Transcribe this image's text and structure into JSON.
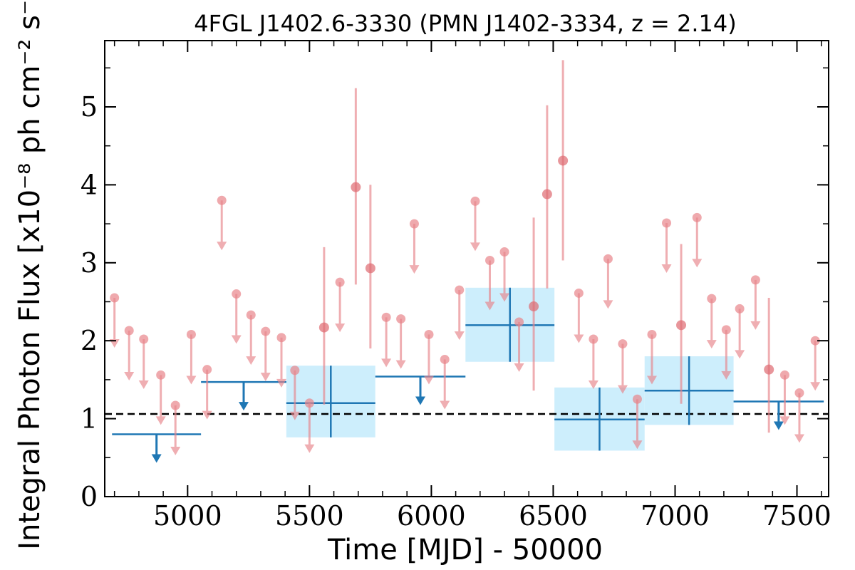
{
  "chart_data": {
    "type": "scatter",
    "title": "4FGL J1402.6-3330 (PMN J1402-3334, z = 2.14)",
    "xlabel": "Time [MJD] - 50000",
    "ylabel": "Integral Photon Flux [x10⁻⁸ ph cm⁻² s⁻¹]",
    "xlim": [
      4660,
      7630
    ],
    "ylim": [
      0,
      5.85
    ],
    "xticks": [
      5000,
      5500,
      6000,
      6500,
      7000,
      7500
    ],
    "xtick_labels": [
      "5000",
      "5500",
      "6000",
      "6500",
      "7000",
      "7500"
    ],
    "yticks": [
      0,
      1,
      2,
      3,
      4,
      5
    ],
    "ytick_labels": [
      "0",
      "1",
      "2",
      "3",
      "4",
      "5"
    ],
    "mean_flux": 1.06,
    "colors": {
      "monthly": "#e8848a",
      "binned": "#1f77b4",
      "box_fill": "#cdeefc",
      "mean_line": "#000000"
    },
    "series": [
      {
        "kind": "monthly_detections",
        "points": [
          {
            "x": 5560,
            "y": 2.17,
            "ylo": 1.18,
            "yhi": 3.2
          },
          {
            "x": 5690,
            "y": 3.97,
            "ylo": 2.72,
            "yhi": 5.24
          },
          {
            "x": 5750,
            "y": 2.93,
            "ylo": 1.9,
            "yhi": 4.0
          },
          {
            "x": 6420,
            "y": 2.44,
            "ylo": 1.36,
            "yhi": 3.58
          },
          {
            "x": 6475,
            "y": 3.88,
            "ylo": 2.67,
            "yhi": 5.02
          },
          {
            "x": 6540,
            "y": 4.31,
            "ylo": 3.03,
            "yhi": 5.6
          },
          {
            "x": 7025,
            "y": 2.2,
            "ylo": 1.19,
            "yhi": 3.24
          },
          {
            "x": 7385,
            "y": 1.63,
            "ylo": 0.82,
            "yhi": 2.55
          }
        ]
      },
      {
        "kind": "monthly_upper_limits",
        "points": [
          {
            "x": 4700,
            "y": 2.55
          },
          {
            "x": 4760,
            "y": 2.13
          },
          {
            "x": 4820,
            "y": 2.02
          },
          {
            "x": 4890,
            "y": 1.56
          },
          {
            "x": 4950,
            "y": 1.17
          },
          {
            "x": 5015,
            "y": 2.08
          },
          {
            "x": 5080,
            "y": 1.63
          },
          {
            "x": 5140,
            "y": 3.8
          },
          {
            "x": 5200,
            "y": 2.6
          },
          {
            "x": 5260,
            "y": 2.33
          },
          {
            "x": 5320,
            "y": 2.12
          },
          {
            "x": 5385,
            "y": 2.04
          },
          {
            "x": 5440,
            "y": 1.62
          },
          {
            "x": 5500,
            "y": 1.2
          },
          {
            "x": 5625,
            "y": 2.75
          },
          {
            "x": 5815,
            "y": 2.3
          },
          {
            "x": 5875,
            "y": 2.28
          },
          {
            "x": 5930,
            "y": 3.5
          },
          {
            "x": 5990,
            "y": 2.08
          },
          {
            "x": 6055,
            "y": 1.76
          },
          {
            "x": 6115,
            "y": 2.65
          },
          {
            "x": 6180,
            "y": 3.79
          },
          {
            "x": 6240,
            "y": 3.03
          },
          {
            "x": 6300,
            "y": 3.14
          },
          {
            "x": 6360,
            "y": 2.24
          },
          {
            "x": 6605,
            "y": 2.61
          },
          {
            "x": 6665,
            "y": 2.02
          },
          {
            "x": 6725,
            "y": 3.05
          },
          {
            "x": 6785,
            "y": 1.96
          },
          {
            "x": 6845,
            "y": 1.25
          },
          {
            "x": 6905,
            "y": 2.08
          },
          {
            "x": 6965,
            "y": 3.51
          },
          {
            "x": 7090,
            "y": 3.58
          },
          {
            "x": 7150,
            "y": 2.54
          },
          {
            "x": 7210,
            "y": 2.14
          },
          {
            "x": 7265,
            "y": 2.41
          },
          {
            "x": 7330,
            "y": 2.78
          },
          {
            "x": 7450,
            "y": 1.56
          },
          {
            "x": 7510,
            "y": 1.33
          },
          {
            "x": 7575,
            "y": 2.0
          }
        ]
      },
      {
        "kind": "binned_detections",
        "points": [
          {
            "x0": 5405,
            "x1": 5770,
            "y": 1.2,
            "ylo": 0.76,
            "yhi": 1.68
          },
          {
            "x0": 6140,
            "x1": 6505,
            "y": 2.2,
            "ylo": 1.73,
            "yhi": 2.68
          },
          {
            "x0": 6505,
            "x1": 6875,
            "y": 0.99,
            "ylo": 0.59,
            "yhi": 1.4
          },
          {
            "x0": 6875,
            "x1": 7240,
            "y": 1.36,
            "ylo": 0.92,
            "yhi": 1.8
          }
        ]
      },
      {
        "kind": "binned_upper_limits",
        "points": [
          {
            "x0": 4690,
            "x1": 5055,
            "y": 0.8
          },
          {
            "x0": 5055,
            "x1": 5405,
            "y": 1.47
          },
          {
            "x0": 5770,
            "x1": 6140,
            "y": 1.54
          },
          {
            "x0": 7240,
            "x1": 7610,
            "y": 1.22
          }
        ]
      }
    ]
  }
}
